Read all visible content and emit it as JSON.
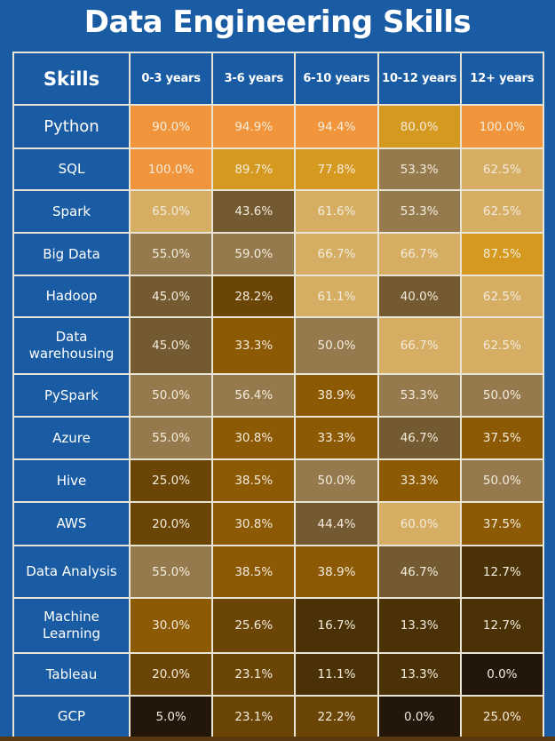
{
  "title": "Data Engineering Skills",
  "header": {
    "skills_label": "Skills",
    "columns": [
      "0-3 years",
      "3-6 years",
      "6-10 years",
      "10-12 years",
      "12+ years"
    ]
  },
  "palette": {
    "A": "#F0953C",
    "B": "#D6991F",
    "C": "#D5AD63",
    "D": "#957A4D",
    "E": "#735A30",
    "F": "#6B4506",
    "G": "#8C5905",
    "H": "#4A3206",
    "I": "#23170A"
  },
  "chart_data": {
    "type": "heatmap",
    "title": "Data Engineering Skills",
    "row_header": "Skills",
    "columns": [
      "0-3 years",
      "3-6 years",
      "6-10 years",
      "10-12 years",
      "12+ years"
    ],
    "unit": "%",
    "rows": [
      {
        "skill": "Python",
        "values": [
          90.0,
          94.9,
          94.4,
          80.0,
          100.0
        ],
        "labels": [
          "90.0%",
          "94.9%",
          "94.4%",
          "80.0%",
          "100.0%"
        ],
        "colors": [
          "A",
          "A",
          "A",
          "B",
          "A"
        ]
      },
      {
        "skill": "SQL",
        "values": [
          100.0,
          89.7,
          77.8,
          53.3,
          62.5
        ],
        "labels": [
          "100.0%",
          "89.7%",
          "77.8%",
          "53.3%",
          "62.5%"
        ],
        "colors": [
          "A",
          "B",
          "B",
          "D",
          "C"
        ]
      },
      {
        "skill": "Spark",
        "values": [
          65.0,
          43.6,
          61.6,
          53.3,
          62.5
        ],
        "labels": [
          "65.0%",
          "43.6%",
          "61.6%",
          "53.3%",
          "62.5%"
        ],
        "colors": [
          "C",
          "E",
          "C",
          "D",
          "C"
        ]
      },
      {
        "skill": "Big Data",
        "values": [
          55.0,
          59.0,
          66.7,
          66.7,
          87.5
        ],
        "labels": [
          "55.0%",
          "59.0%",
          "66.7%",
          "66.7%",
          "87.5%"
        ],
        "colors": [
          "D",
          "D",
          "C",
          "C",
          "B"
        ]
      },
      {
        "skill": "Hadoop",
        "values": [
          45.0,
          28.2,
          61.1,
          40.0,
          62.5
        ],
        "labels": [
          "45.0%",
          "28.2%",
          "61.1%",
          "40.0%",
          "62.5%"
        ],
        "colors": [
          "E",
          "F",
          "C",
          "E",
          "C"
        ]
      },
      {
        "skill": "Data warehousing",
        "values": [
          45.0,
          33.3,
          50.0,
          66.7,
          62.5
        ],
        "labels": [
          "45.0%",
          "33.3%",
          "50.0%",
          "66.7%",
          "62.5%"
        ],
        "colors": [
          "E",
          "G",
          "D",
          "C",
          "C"
        ]
      },
      {
        "skill": "PySpark",
        "values": [
          50.0,
          56.4,
          38.9,
          53.3,
          50.0
        ],
        "labels": [
          "50.0%",
          "56.4%",
          "38.9%",
          "53.3%",
          "50.0%"
        ],
        "colors": [
          "D",
          "D",
          "G",
          "D",
          "D"
        ]
      },
      {
        "skill": "Azure",
        "values": [
          55.0,
          30.8,
          33.3,
          46.7,
          37.5
        ],
        "labels": [
          "55.0%",
          "30.8%",
          "33.3%",
          "46.7%",
          "37.5%"
        ],
        "colors": [
          "D",
          "G",
          "G",
          "E",
          "G"
        ]
      },
      {
        "skill": "Hive",
        "values": [
          25.0,
          38.5,
          50.0,
          33.3,
          50.0
        ],
        "labels": [
          "25.0%",
          "38.5%",
          "50.0%",
          "33.3%",
          "50.0%"
        ],
        "colors": [
          "F",
          "G",
          "D",
          "G",
          "D"
        ]
      },
      {
        "skill": "AWS",
        "values": [
          20.0,
          30.8,
          44.4,
          60.0,
          37.5
        ],
        "labels": [
          "20.0%",
          "30.8%",
          "44.4%",
          "60.0%",
          "37.5%"
        ],
        "colors": [
          "F",
          "G",
          "E",
          "C",
          "G"
        ]
      },
      {
        "skill": "Data Analysis",
        "values": [
          55.0,
          38.5,
          38.9,
          46.7,
          12.7
        ],
        "labels": [
          "55.0%",
          "38.5%",
          "38.9%",
          "46.7%",
          "12.7%"
        ],
        "colors": [
          "D",
          "G",
          "G",
          "E",
          "H"
        ]
      },
      {
        "skill": "Machine Learning",
        "values": [
          30.0,
          25.6,
          16.7,
          13.3,
          12.7
        ],
        "labels": [
          "30.0%",
          "25.6%",
          "16.7%",
          "13.3%",
          "12.7%"
        ],
        "colors": [
          "G",
          "F",
          "H",
          "H",
          "H"
        ]
      },
      {
        "skill": "Tableau",
        "values": [
          20.0,
          23.1,
          11.1,
          13.3,
          0.0
        ],
        "labels": [
          "20.0%",
          "23.1%",
          "11.1%",
          "13.3%",
          "0.0%"
        ],
        "colors": [
          "F",
          "F",
          "H",
          "H",
          "I"
        ]
      },
      {
        "skill": "GCP",
        "values": [
          5.0,
          23.1,
          22.2,
          0.0,
          25.0
        ],
        "labels": [
          "5.0%",
          "23.1%",
          "22.2%",
          "0.0%",
          "25.0%"
        ],
        "colors": [
          "I",
          "F",
          "F",
          "I",
          "F"
        ]
      }
    ]
  }
}
